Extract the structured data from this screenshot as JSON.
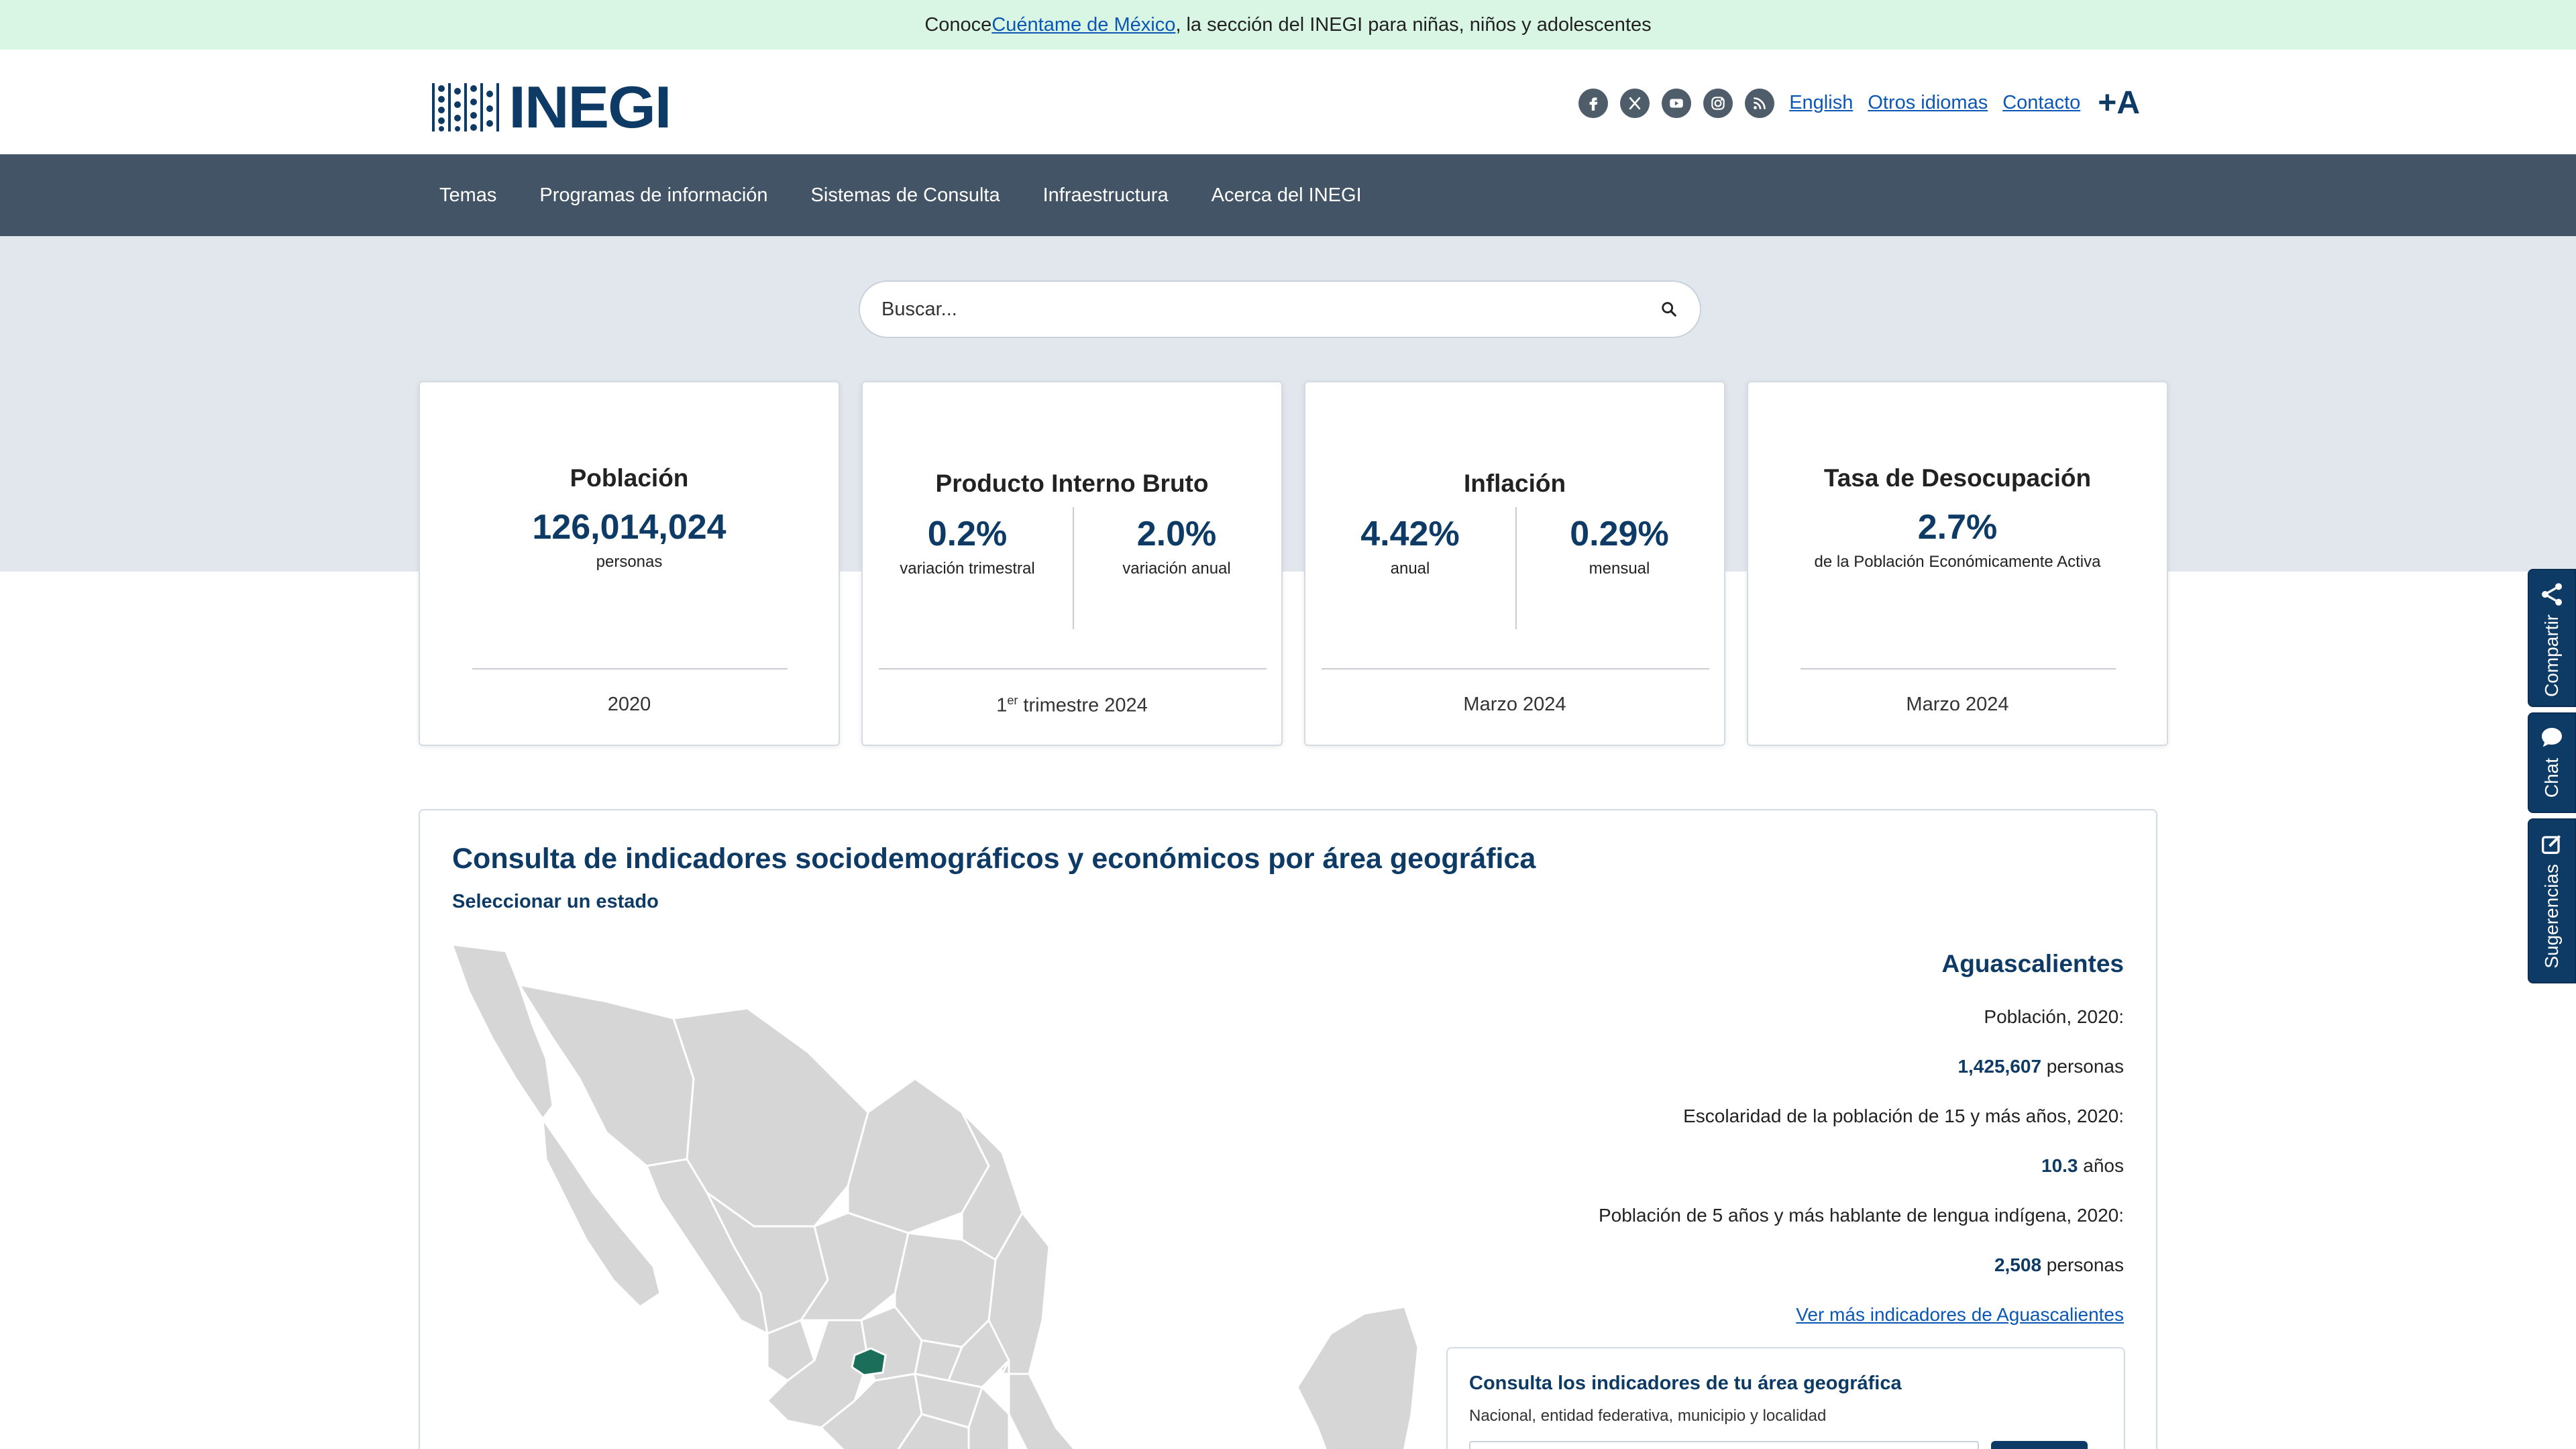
{
  "banner": {
    "prefix": "Conoce ",
    "link": "Cuéntame de México",
    "suffix": ", la sección del INEGI para niñas, niños y adolescentes"
  },
  "header": {
    "logo_text": "INEGI",
    "social": [
      "facebook-icon",
      "x-icon",
      "youtube-icon",
      "instagram-icon",
      "rss-icon"
    ],
    "links": {
      "english": "English",
      "otros": "Otros idiomas",
      "contacto": "Contacto"
    },
    "font_size_label": "+A"
  },
  "nav": {
    "items": [
      "Temas",
      "Programas de información",
      "Sistemas de Consulta",
      "Infraestructura",
      "Acerca del INEGI"
    ]
  },
  "search": {
    "placeholder": "Buscar..."
  },
  "cards": {
    "poblacion": {
      "title": "Población",
      "value": "126,014,024",
      "unit": "personas",
      "date": "2020"
    },
    "pib": {
      "title": "Producto Interno Bruto",
      "v1": "0.2%",
      "l1": "variación trimestral",
      "v2": "2.0%",
      "l2": "variación anual",
      "date_sup": "er",
      "date_pre": "1",
      "date_post": " trimestre 2024"
    },
    "inflacion": {
      "title": "Inflación",
      "v1": "4.42%",
      "l1": "anual",
      "v2": "0.29%",
      "l2": "mensual",
      "date": "Marzo 2024"
    },
    "desocupacion": {
      "title": "Tasa de Desocupación",
      "value": "2.7%",
      "unit": "de la Población Económicamente Activa",
      "date": "Marzo 2024"
    }
  },
  "geo": {
    "title": "Consulta de indicadores sociodemográficos y económicos por área geográfica",
    "select_label": "Seleccionar un estado",
    "state": "Aguascalientes",
    "pob_label": "Población, 2020:",
    "pob_value": "1,425,607",
    "pob_unit": " personas",
    "esc_label": "Escolaridad de la población de 15 y más años, 2020:",
    "esc_value": "10.3",
    "esc_unit": " años",
    "ind_label": "Población de 5 años y más hablante de lengua indígena, 2020:",
    "ind_value": "2,508",
    "ind_unit": " personas",
    "more_link": "Ver más indicadores de Aguascalientes",
    "consulta_title": "Consulta los indicadores de tu área geográfica",
    "consulta_sub": "Nacional, entidad federativa, municipio y localidad",
    "highlight_color": "#1b6e5a"
  },
  "side_tabs": {
    "compartir": "Compartir",
    "chat": "Chat",
    "sugerencias": "Sugerencias"
  }
}
